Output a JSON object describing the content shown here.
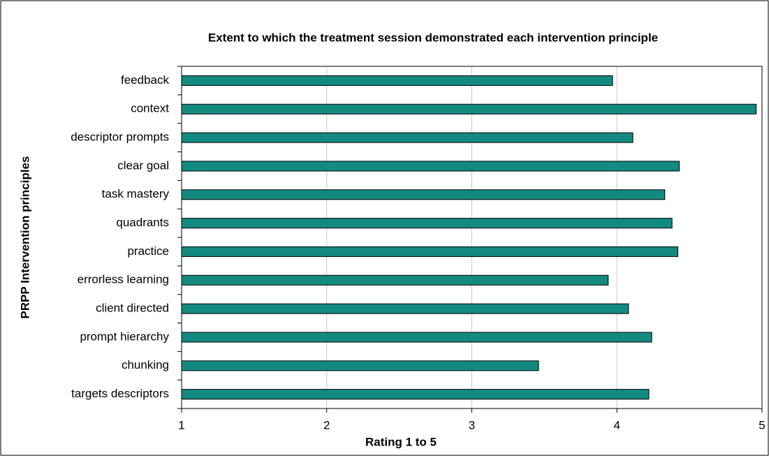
{
  "chart_data": {
    "type": "bar",
    "orientation": "horizontal",
    "title": "Extent to which the treatment session demonstrated each intervention principle",
    "x_label": "Rating 1 to 5",
    "y_label": "PRPP Intervention principles",
    "categories": [
      "feedback",
      "context",
      "descriptor prompts",
      "clear goal",
      "task mastery",
      "quadrants",
      "practice",
      "errorless learning",
      "client directed",
      "prompt hierarchy",
      "chunking",
      "targets descriptors"
    ],
    "values": [
      3.97,
      4.96,
      4.11,
      4.43,
      4.33,
      4.38,
      4.42,
      3.94,
      4.08,
      4.24,
      3.46,
      4.22
    ],
    "color": "#138a80",
    "xlim": [
      1,
      5
    ],
    "xticks": [
      1,
      2,
      3,
      4,
      5
    ],
    "grid": true
  }
}
